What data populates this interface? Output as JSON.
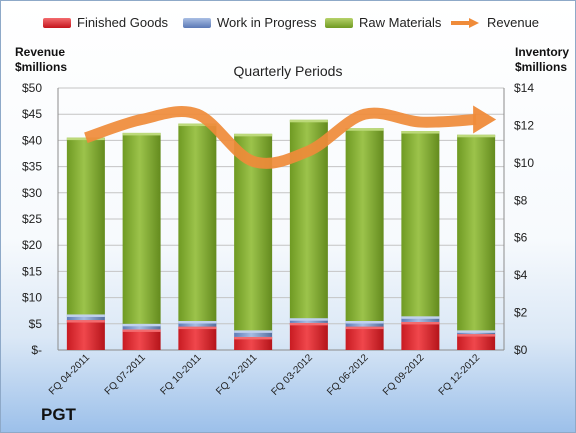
{
  "chart_data": {
    "type": "bar",
    "title": "Quarterly Periods",
    "company": "PGT",
    "categories": [
      "FQ 04-2011",
      "FQ 07-2011",
      "FQ 10-2011",
      "FQ 12-2011",
      "FQ 03-2012",
      "FQ 06-2012",
      "FQ 09-2012",
      "FQ 12-2012"
    ],
    "left_axis": {
      "label_line1": "Revenue",
      "label_line2": "$millions",
      "ylim": [
        0,
        50
      ],
      "ticks": [
        "$-",
        "$5",
        "$10",
        "$15",
        "$20",
        "$25",
        "$30",
        "$35",
        "$40",
        "$45",
        "$50"
      ]
    },
    "right_axis": {
      "label_line1": "Inventory",
      "label_line2": "$millions",
      "ylim": [
        0,
        14
      ],
      "ticks": [
        "$0",
        "$2",
        "$4",
        "$6",
        "$8",
        "$10",
        "$12",
        "$14"
      ]
    },
    "stacked_series": [
      {
        "name": "Finished Goods",
        "color": "#e0242b",
        "values": [
          1.6,
          1.1,
          1.25,
          0.7,
          1.45,
          1.25,
          1.5,
          0.85
        ]
      },
      {
        "name": "Work in Progress",
        "color": "#7c98cc",
        "values": [
          0.3,
          0.3,
          0.3,
          0.35,
          0.25,
          0.3,
          0.3,
          0.2
        ]
      },
      {
        "name": "Raw Materials",
        "color": "#8db13c",
        "values": [
          9.45,
          10.2,
          10.55,
          10.5,
          10.6,
          10.3,
          9.9,
          10.45
        ]
      }
    ],
    "line_series": {
      "name": "Revenue",
      "color": "#ef8b3a",
      "values": [
        40.5,
        44,
        45,
        36,
        38,
        45,
        43.5,
        44
      ]
    },
    "grid": true,
    "legend_position": "top"
  }
}
